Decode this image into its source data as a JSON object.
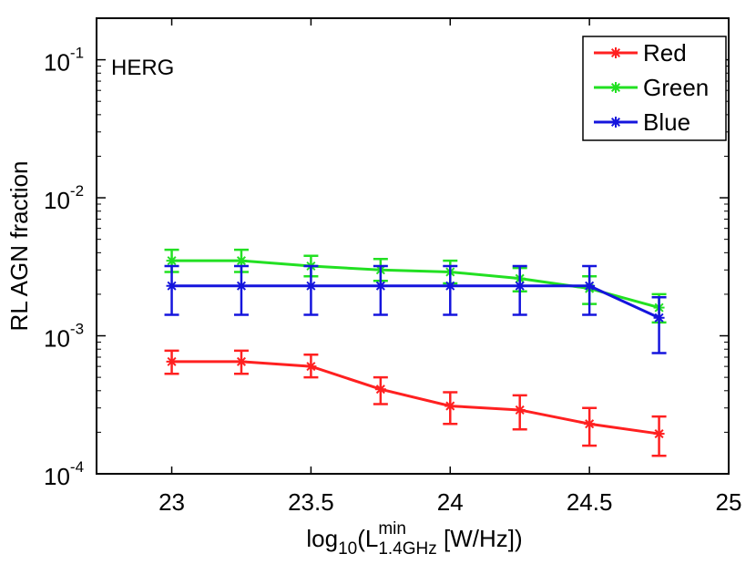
{
  "chart_data": {
    "type": "line",
    "yscale": "log",
    "annotation": "HERG",
    "xlabel": {
      "prefix": "log",
      "prefix_sub": "10",
      "open": "(L",
      "sup": "min",
      "sub": "1.4GHz",
      "suffix": " [W/Hz])"
    },
    "ylabel": "RL AGN fraction",
    "xlim": [
      22.73,
      25.0
    ],
    "ylim": [
      0.0001,
      0.2
    ],
    "x_ticks": [
      23,
      23.5,
      24,
      24.5,
      25
    ],
    "x_tick_labels": [
      "23",
      "23.5",
      "24",
      "24.5",
      "25"
    ],
    "y_ticks": [
      {
        "value": 0.1,
        "base": "10",
        "exp": "-1"
      },
      {
        "value": 0.01,
        "base": "10",
        "exp": "-2"
      },
      {
        "value": 0.001,
        "base": "10",
        "exp": "-3"
      },
      {
        "value": 0.0001,
        "base": "10",
        "exp": "-4"
      }
    ],
    "legend_position": "top-right",
    "x": [
      23.0,
      23.25,
      23.5,
      23.75,
      24.0,
      24.25,
      24.5,
      24.75
    ],
    "series": [
      {
        "name": "Red",
        "color": "#ff2020",
        "values": [
          0.00065,
          0.00065,
          0.0006,
          0.00041,
          0.00031,
          0.00029,
          0.00023,
          0.000195
        ],
        "err_low": [
          0.00053,
          0.00053,
          0.0005,
          0.00032,
          0.00023,
          0.00021,
          0.00016,
          0.000135
        ],
        "err_high": [
          0.00078,
          0.00078,
          0.00073,
          0.0005,
          0.00039,
          0.00037,
          0.0003,
          0.00026
        ]
      },
      {
        "name": "Green",
        "color": "#22e022",
        "values": [
          0.0035,
          0.0035,
          0.0032,
          0.003,
          0.0029,
          0.0026,
          0.0022,
          0.0016
        ],
        "err_low": [
          0.0029,
          0.0029,
          0.0027,
          0.0025,
          0.0024,
          0.0021,
          0.0017,
          0.00125
        ],
        "err_high": [
          0.0042,
          0.0042,
          0.0038,
          0.0036,
          0.0035,
          0.0031,
          0.0027,
          0.002
        ]
      },
      {
        "name": "Blue",
        "color": "#1515dd",
        "values": [
          0.0023,
          0.0023,
          0.0023,
          0.0023,
          0.0023,
          0.0023,
          0.0023,
          0.00135
        ],
        "err_low": [
          0.00142,
          0.00142,
          0.00142,
          0.00142,
          0.00142,
          0.00142,
          0.00142,
          0.00075
        ],
        "err_high": [
          0.0032,
          0.0032,
          0.0032,
          0.0032,
          0.0032,
          0.0032,
          0.0032,
          0.0019
        ]
      }
    ]
  }
}
